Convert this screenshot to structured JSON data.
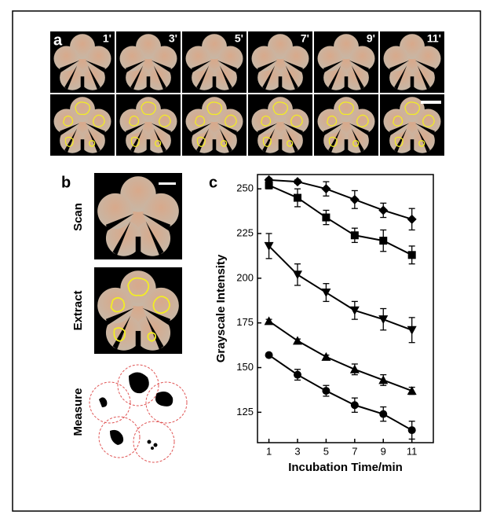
{
  "figure": {
    "panel_a": {
      "label": "a",
      "time_labels": [
        "1'",
        "3'",
        "5'",
        "7'",
        "9'",
        "11'"
      ]
    },
    "panel_b": {
      "label": "b",
      "row_labels": [
        "Scan",
        "Extract",
        "Measure"
      ]
    },
    "panel_c": {
      "label": "c"
    }
  },
  "chart_data": {
    "type": "line",
    "x_label": "Incubation Time/min",
    "y_label": "Grayscale Intensity",
    "x": [
      1,
      3,
      5,
      7,
      9,
      11
    ],
    "xlim": [
      0.2,
      12.5
    ],
    "xticks": [
      1,
      3,
      5,
      7,
      9,
      11
    ],
    "ylim": [
      108,
      258
    ],
    "yticks": [
      125,
      150,
      175,
      200,
      225,
      250
    ],
    "series": [
      {
        "color": "#000000",
        "marker": "diamond",
        "values": [
          255,
          254,
          250,
          244,
          238,
          233
        ],
        "errors": [
          1,
          1,
          4,
          5,
          4,
          6
        ]
      },
      {
        "color": "#000000",
        "marker": "square",
        "values": [
          252,
          245,
          234,
          224,
          221,
          213
        ],
        "errors": [
          2,
          5,
          4,
          4,
          6,
          5
        ]
      },
      {
        "color": "#000000",
        "marker": "triangle-down",
        "values": [
          218,
          202,
          192,
          182,
          177,
          171
        ],
        "errors": [
          7,
          6,
          5,
          5,
          6,
          7
        ]
      },
      {
        "color": "#000000",
        "marker": "triangle-up",
        "values": [
          176,
          165,
          156,
          149,
          143,
          137
        ],
        "errors": [
          1,
          1,
          1,
          3,
          3,
          2
        ]
      },
      {
        "color": "#000000",
        "marker": "circle",
        "values": [
          157,
          146,
          137,
          129,
          124,
          115
        ],
        "errors": [
          1,
          3,
          3,
          4,
          4,
          5
        ]
      }
    ]
  }
}
